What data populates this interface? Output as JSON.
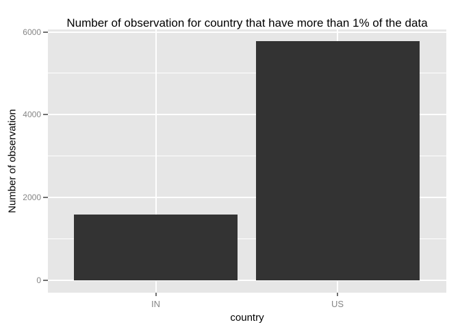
{
  "chart_data": {
    "type": "bar",
    "title": "Number of observation for country that have more than 1% of the data",
    "xlabel": "country",
    "ylabel": "Number of observation",
    "categories": [
      "IN",
      "US"
    ],
    "values": [
      1590,
      5780
    ],
    "ylim": [
      0,
      6000
    ],
    "yticks": [
      0,
      2000,
      4000,
      6000
    ],
    "yminorticks": [
      1000,
      3000,
      5000
    ],
    "grid": "on",
    "legend": "none",
    "colors": {
      "background": "#FFFFFF",
      "panel_background": "#E6E6E6",
      "grid_line": "#FFFFFF",
      "bar_fill": "#333333",
      "tick_label": "#858585",
      "tick_mark": "#707070",
      "title": "#000000",
      "axis_title": "#000000"
    }
  }
}
